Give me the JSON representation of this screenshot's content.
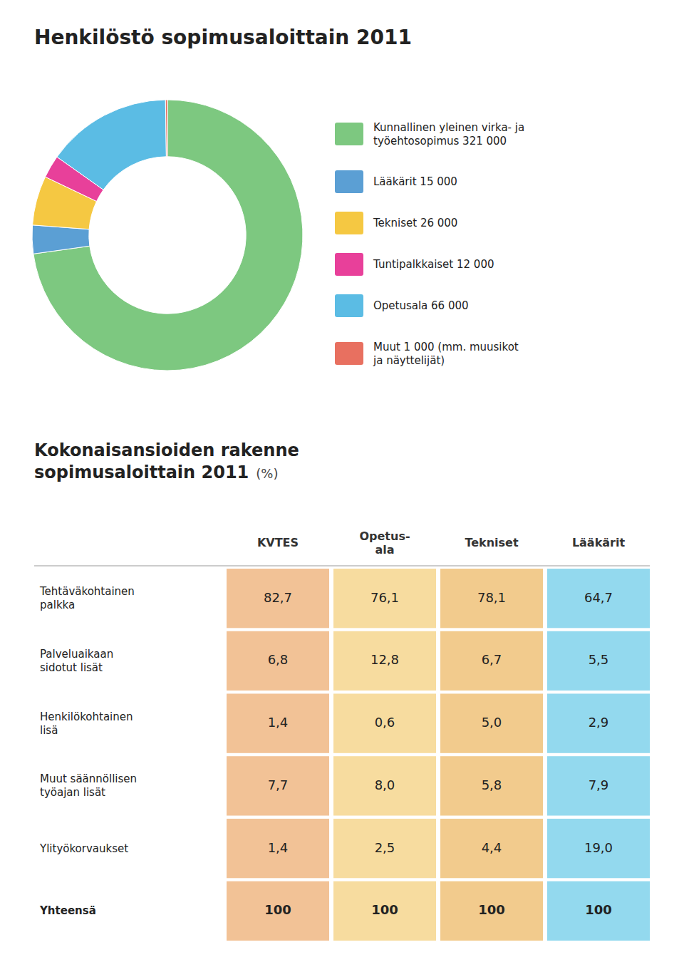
{
  "chart_data": [
    {
      "type": "pie",
      "title": "Henkilöstö sopimusaloittain 2011",
      "categories": [
        "Kunnallinen yleinen virka- ja\ntyöehtosopimus 321 000",
        "Lääkärit 15 000",
        "Tekniset 26 000",
        "Tuntipalkkaiset 12 000",
        "Opetusala 66 000",
        "Muut 1 000 (mm. muusikot\nja näyttelijät)"
      ],
      "values": [
        321000,
        15000,
        26000,
        12000,
        66000,
        1000
      ],
      "colors": [
        "#7DC880",
        "#5B9FD4",
        "#F5C842",
        "#E8409A",
        "#5BBCE4",
        "#E87060"
      ],
      "legend": "right"
    },
    {
      "type": "table",
      "title": "Kokonaisansioiden rakenne\nsopimusaloittain 2011",
      "subtitle": "(%)",
      "categories": [
        "Tehtäväkohtainen\npalkka",
        "Palveluaikaan\nsidotut lisät",
        "Henkilökohtainen\nlisä",
        "Muut säännöllisen\ntyöajan lisät",
        "Ylityökorvaukset",
        "Yhteensä"
      ],
      "data_labels": true,
      "series": [
        {
          "name": "KVTES",
          "color": "#E89040",
          "values": [
            82.7,
            6.8,
            1.4,
            7.7,
            1.4,
            100
          ],
          "value_labels": [
            "82,7",
            "6,8",
            "1,4",
            "7,7",
            "1,4",
            "100"
          ]
        },
        {
          "name": "Opetus-\nala",
          "color": "#F0C050",
          "values": [
            76.1,
            12.8,
            0.6,
            8.0,
            2.5,
            100
          ],
          "value_labels": [
            "76,1",
            "12,8",
            "0,6",
            "8,0",
            "2,5",
            "100"
          ]
        },
        {
          "name": "Tekniset",
          "color": "#E8A030",
          "values": [
            78.1,
            6.7,
            5.0,
            5.8,
            4.4,
            100
          ],
          "value_labels": [
            "78,1",
            "6,7",
            "5,0",
            "5,8",
            "4,4",
            "100"
          ]
        },
        {
          "name": "Lääkärit",
          "color": "#3BBAE0",
          "values": [
            64.7,
            5.5,
            2.9,
            7.9,
            19.0,
            100
          ],
          "value_labels": [
            "64,7",
            "5,5",
            "2,9",
            "7,9",
            "19,0",
            "100"
          ]
        }
      ]
    }
  ]
}
